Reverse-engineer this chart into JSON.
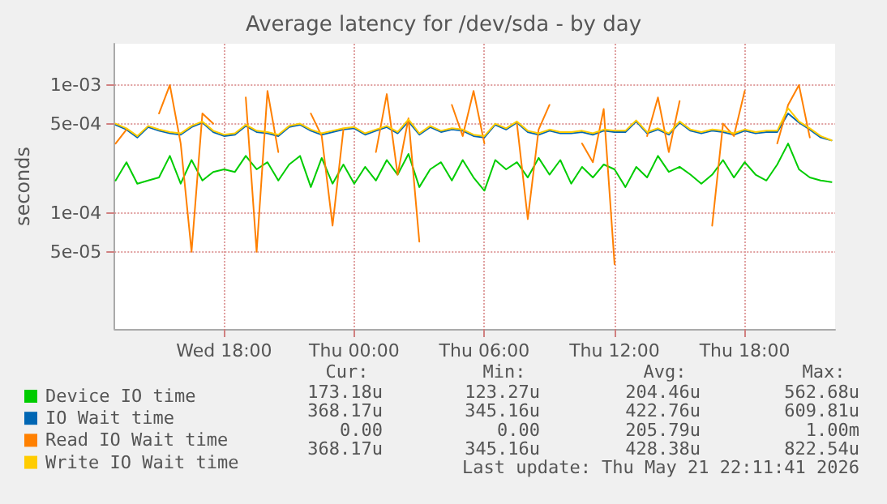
{
  "chart_data": {
    "type": "line",
    "title": "Average latency for /dev/sda - by day",
    "ylabel": "seconds",
    "log": true,
    "grid": true,
    "legend": "bottom",
    "marker": "none",
    "line_style": "solid",
    "x": [
      "2026-05-20T13:00",
      "2026-05-20T13:30",
      "2026-05-20T14:00",
      "2026-05-20T14:30",
      "2026-05-20T15:00",
      "2026-05-20T15:30",
      "2026-05-20T16:00",
      "2026-05-20T16:30",
      "2026-05-20T17:00",
      "2026-05-20T17:30",
      "2026-05-20T18:00",
      "2026-05-20T18:30",
      "2026-05-20T19:00",
      "2026-05-20T19:30",
      "2026-05-20T20:00",
      "2026-05-20T20:30",
      "2026-05-20T21:00",
      "2026-05-20T21:30",
      "2026-05-20T22:00",
      "2026-05-20T22:30",
      "2026-05-20T23:00",
      "2026-05-20T23:30",
      "2026-05-21T00:00",
      "2026-05-21T00:30",
      "2026-05-21T01:00",
      "2026-05-21T01:30",
      "2026-05-21T02:00",
      "2026-05-21T02:30",
      "2026-05-21T03:00",
      "2026-05-21T03:30",
      "2026-05-21T04:00",
      "2026-05-21T04:30",
      "2026-05-21T05:00",
      "2026-05-21T05:30",
      "2026-05-21T06:00",
      "2026-05-21T06:30",
      "2026-05-21T07:00",
      "2026-05-21T07:30",
      "2026-05-21T08:00",
      "2026-05-21T08:30",
      "2026-05-21T09:00",
      "2026-05-21T09:30",
      "2026-05-21T10:00",
      "2026-05-21T10:30",
      "2026-05-21T11:00",
      "2026-05-21T11:30",
      "2026-05-21T12:00",
      "2026-05-21T12:30",
      "2026-05-21T13:00",
      "2026-05-21T13:30",
      "2026-05-21T14:00",
      "2026-05-21T14:30",
      "2026-05-21T15:00",
      "2026-05-21T15:30",
      "2026-05-21T16:00",
      "2026-05-21T16:30",
      "2026-05-21T17:00",
      "2026-05-21T17:30",
      "2026-05-21T18:00",
      "2026-05-21T18:30",
      "2026-05-21T19:00",
      "2026-05-21T19:30",
      "2026-05-21T20:00",
      "2026-05-21T20:30",
      "2026-05-21T21:00",
      "2026-05-21T21:30",
      "2026-05-21T22:00"
    ],
    "xlim": [
      "2026-05-20T12:57",
      "2026-05-21T22:10"
    ],
    "xticks": [
      {
        "value": "2026-05-20T18:00",
        "label": "Wed 18:00"
      },
      {
        "value": "2026-05-21T00:00",
        "label": "Thu 00:00"
      },
      {
        "value": "2026-05-21T06:00",
        "label": "Thu 06:00"
      },
      {
        "value": "2026-05-21T12:00",
        "label": "Thu 12:00"
      },
      {
        "value": "2026-05-21T18:00",
        "label": "Thu 18:00"
      }
    ],
    "ylim": [
      1.25e-05,
      0.0021
    ],
    "yticks": [
      {
        "value": 5e-05,
        "label": "5e-05"
      },
      {
        "value": 0.0001,
        "label": "1e-04"
      },
      {
        "value": 0.0005,
        "label": "5e-04"
      },
      {
        "value": 0.001,
        "label": "1e-03"
      }
    ],
    "series": [
      {
        "name": "Device IO time",
        "color": "#00cc00",
        "values": [
          0.00018,
          0.00025,
          0.00017,
          0.00018,
          0.00019,
          0.00028,
          0.00017,
          0.00026,
          0.00018,
          0.00021,
          0.00022,
          0.00021,
          0.00028,
          0.00022,
          0.00025,
          0.00018,
          0.00024,
          0.00028,
          0.00016,
          0.00027,
          0.00017,
          0.00024,
          0.00017,
          0.00023,
          0.00018,
          0.00026,
          0.0002,
          0.00029,
          0.00016,
          0.00022,
          0.00025,
          0.00018,
          0.00026,
          0.00019,
          0.00015,
          0.00026,
          0.00022,
          0.00025,
          0.00019,
          0.00027,
          0.0002,
          0.00026,
          0.00017,
          0.00023,
          0.00019,
          0.00024,
          0.00022,
          0.00016,
          0.00023,
          0.00019,
          0.00028,
          0.00021,
          0.00023,
          0.0002,
          0.00017,
          0.0002,
          0.00026,
          0.00019,
          0.00025,
          0.0002,
          0.00018,
          0.00024,
          0.00035,
          0.00022,
          0.00019,
          0.00018,
          0.000175
        ]
      },
      {
        "name": "IO Wait time",
        "color": "#0066b3",
        "values": [
          0.00049,
          0.00045,
          0.00039,
          0.00047,
          0.00044,
          0.00042,
          0.00041,
          0.00047,
          0.00051,
          0.00043,
          0.0004,
          0.00041,
          0.00048,
          0.00043,
          0.00042,
          0.0004,
          0.00047,
          0.00049,
          0.00044,
          0.00041,
          0.00043,
          0.00045,
          0.00046,
          0.00041,
          0.00044,
          0.00047,
          0.00042,
          0.00052,
          0.00041,
          0.00047,
          0.00043,
          0.00045,
          0.00044,
          0.0004,
          0.00039,
          0.00049,
          0.00045,
          0.00051,
          0.00043,
          0.00041,
          0.00044,
          0.00042,
          0.00042,
          0.00043,
          0.00041,
          0.00044,
          0.00043,
          0.00043,
          0.00052,
          0.00042,
          0.00045,
          0.00041,
          0.00051,
          0.00044,
          0.00042,
          0.00044,
          0.00043,
          0.00041,
          0.00044,
          0.00042,
          0.00043,
          0.00043,
          0.0006,
          0.00051,
          0.00045,
          0.00039,
          0.00037
        ]
      },
      {
        "name": "Read IO Wait time",
        "color": "#ff8000",
        "values": [
          0.00035,
          0.00045,
          null,
          null,
          0.0006,
          0.001,
          0.00035,
          5e-05,
          0.0006,
          0.0005,
          null,
          null,
          0.0008,
          5e-05,
          0.0009,
          0.0003,
          null,
          null,
          0.0006,
          0.0004,
          8e-05,
          0.00045,
          null,
          null,
          0.0003,
          0.00085,
          0.0002,
          0.00055,
          6e-05,
          null,
          null,
          0.0007,
          0.0004,
          0.0009,
          0.00035,
          null,
          null,
          0.0005,
          9e-05,
          0.00045,
          0.0007,
          null,
          null,
          0.00035,
          0.00025,
          0.00065,
          4e-05,
          null,
          null,
          0.0004,
          0.0008,
          0.0003,
          0.00075,
          null,
          null,
          8e-05,
          0.0005,
          0.0004,
          0.0009,
          null,
          null,
          0.00035,
          0.0007,
          0.001,
          0.00039,
          null,
          null
        ]
      },
      {
        "name": "Write IO Wait time",
        "color": "#ffcc00",
        "values": [
          0.0005,
          0.00046,
          0.0004,
          0.00048,
          0.00045,
          0.00043,
          0.00042,
          0.00048,
          0.00052,
          0.00044,
          0.00041,
          0.00042,
          0.00049,
          0.00044,
          0.00043,
          0.00041,
          0.00048,
          0.0005,
          0.00045,
          0.00042,
          0.00044,
          0.00046,
          0.00047,
          0.00042,
          0.00045,
          0.00048,
          0.00043,
          0.00054,
          0.00042,
          0.00048,
          0.00044,
          0.00046,
          0.00045,
          0.00041,
          0.0004,
          0.0005,
          0.00046,
          0.00052,
          0.00044,
          0.00042,
          0.00045,
          0.00043,
          0.00043,
          0.00044,
          0.00042,
          0.00045,
          0.00044,
          0.00044,
          0.00053,
          0.00043,
          0.00046,
          0.00042,
          0.00052,
          0.00045,
          0.00043,
          0.00045,
          0.00044,
          0.00042,
          0.00045,
          0.00043,
          0.00044,
          0.00044,
          0.00066,
          0.00052,
          0.00046,
          0.0004,
          0.00037
        ]
      }
    ],
    "annotations": [
      "Cur:",
      "Min:",
      "Avg:",
      "Max:",
      "173.18u",
      "123.27u",
      "204.46u",
      "562.68u",
      "368.17u",
      "345.16u",
      "422.76u",
      "609.81u",
      "0.00",
      "0.00",
      "205.79u",
      "1.00m",
      "368.17u",
      "345.16u",
      "428.38u",
      "822.54u",
      "Last update: Thu May 21 22:11:41 2026"
    ]
  }
}
